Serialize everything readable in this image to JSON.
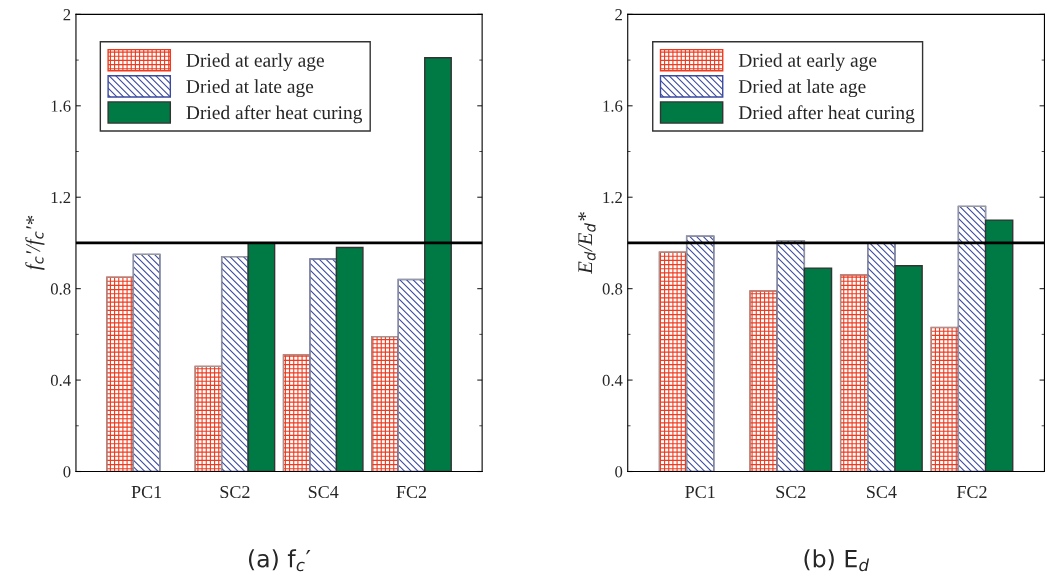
{
  "chart_data": [
    {
      "type": "bar",
      "title": "(a) f$_{c}$′",
      "ylabel": "f$_{c}$′/f$_{c}$′*",
      "categories": [
        "PC1",
        "SC2",
        "SC4",
        "FC2"
      ],
      "series": [
        {
          "name": "Dried at early age",
          "color": "#ee3b1f",
          "values": [
            0.85,
            0.46,
            0.51,
            0.59
          ]
        },
        {
          "name": "Dried at late age",
          "color": "#3b4aa0",
          "values": [
            0.95,
            0.94,
            0.93,
            0.84
          ]
        },
        {
          "name": "Dried after heat curing",
          "color": "#007a45",
          "values": [
            null,
            1.0,
            0.98,
            1.81
          ]
        }
      ],
      "ylim": [
        0,
        2
      ],
      "yticks": [
        0,
        0.4,
        0.8,
        1.2,
        1.6,
        2
      ],
      "ref_lines": [
        {
          "axis": "y",
          "value": 1,
          "color": "#000000"
        }
      ],
      "legend": "top left",
      "grid": false
    },
    {
      "type": "bar",
      "title": "(b) E$_{d}$",
      "ylabel": "E$_{d}$/E$_{d}$*",
      "categories": [
        "PC1",
        "SC2",
        "SC4",
        "FC2"
      ],
      "series": [
        {
          "name": "Dried at early age",
          "color": "#ee3b1f",
          "values": [
            0.96,
            0.79,
            0.86,
            0.63
          ]
        },
        {
          "name": "Dried at late age",
          "color": "#3b4aa0",
          "values": [
            1.03,
            1.01,
            1.0,
            1.16
          ]
        },
        {
          "name": "Dried after heat curing",
          "color": "#007a45",
          "values": [
            null,
            0.89,
            0.9,
            1.1
          ]
        }
      ],
      "ylim": [
        0,
        2
      ],
      "yticks": [
        0,
        0.4,
        0.8,
        1.2,
        1.6,
        2
      ],
      "ref_lines": [
        {
          "axis": "y",
          "value": 1,
          "color": "#000000"
        }
      ],
      "legend": "top left",
      "grid": false
    }
  ]
}
